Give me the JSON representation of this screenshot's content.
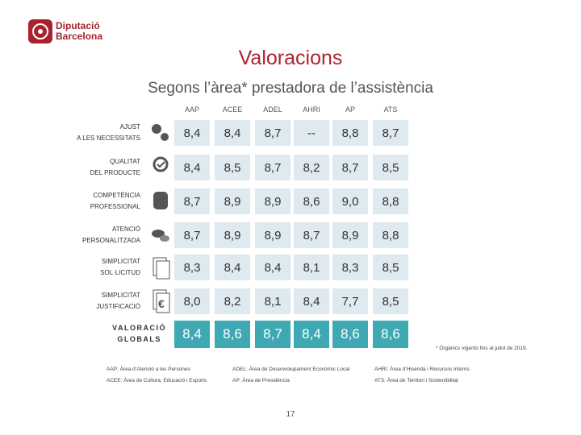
{
  "header": {
    "logo": [
      "Diputació",
      "Barcelona"
    ],
    "title": "Valoracions",
    "subtitle": "Segons l’àrea* prestadora de l’assistència"
  },
  "table": {
    "columns": [
      "AAP",
      "ACEE",
      "ADEL",
      "AHRI",
      "AP",
      "ATS"
    ],
    "rows": [
      {
        "label": [
          "AJUST",
          "A LES NECESSITATS"
        ],
        "values": [
          "8,4",
          "8,4",
          "8,7",
          "--",
          "8,8",
          "8,7"
        ]
      },
      {
        "label": [
          "QUALITAT",
          "DEL PRODUCTE"
        ],
        "values": [
          "8,4",
          "8,5",
          "8,7",
          "8,2",
          "8,7",
          "8,5"
        ]
      },
      {
        "label": [
          "COMPETÈNCIA",
          "PROFESSIONAL"
        ],
        "values": [
          "8,7",
          "8,9",
          "8,9",
          "8,6",
          "9,0",
          "8,8"
        ]
      },
      {
        "label": [
          "ATENCIÓ",
          "PERSONALITZADA"
        ],
        "values": [
          "8,7",
          "8,9",
          "8,9",
          "8,7",
          "8,9",
          "8,8"
        ]
      },
      {
        "label": [
          "SIMPLICITAT",
          "SOL·LICITUD"
        ],
        "values": [
          "8,3",
          "8,4",
          "8,4",
          "8,1",
          "8,3",
          "8,5"
        ]
      },
      {
        "label": [
          "SIMPLICITAT",
          "JUSTIFICACIÓ"
        ],
        "values": [
          "8,0",
          "8,2",
          "8,1",
          "8,4",
          "7,7",
          "8,5"
        ]
      }
    ],
    "total": {
      "label": [
        "VALORACIÓ",
        "GLOBALS"
      ],
      "values": [
        "8,4",
        "8,6",
        "8,7",
        "8,4",
        "8,6",
        "8,6"
      ]
    }
  },
  "footnote": "* Òrgànics vigents fins al juliol de 2019.",
  "legend": [
    [
      "AAP: Àrea d’Atenció a les Persones",
      "ACEE: Àrea de Cultura, Educació i Esports"
    ],
    [
      "ADEL: Àrea de Desenvolupament Econòmic Local",
      "AP: Àrea de Presidència"
    ],
    [
      "AHRI: Àrea d’Hisenda i Recursos Interns",
      "ATS: Àrea de Territori i Sostenibilitat"
    ]
  ],
  "page_number": "17"
}
